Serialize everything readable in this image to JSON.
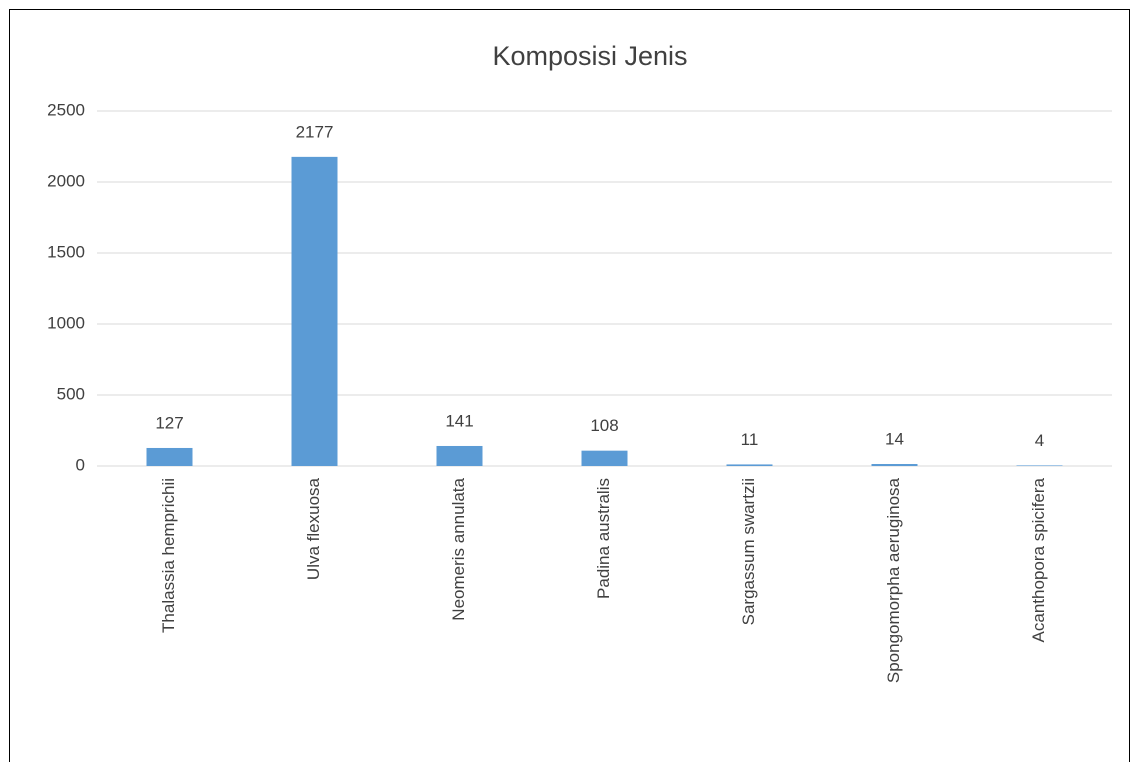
{
  "chart_data": {
    "type": "bar",
    "title": "Komposisi Jenis",
    "categories": [
      "Thalassia hemprichii",
      "Ulva flexuosa",
      "Neomeris annulata",
      "Padina australis",
      "Sargassum swartzii",
      "Spongomorpha aeruginosa",
      "Acanthopora spicifera"
    ],
    "values": [
      127,
      2177,
      141,
      108,
      11,
      14,
      4
    ],
    "color": "#5b9bd5",
    "ylim": [
      0,
      2500
    ],
    "yticks": [
      0,
      500,
      1000,
      1500,
      2000,
      2500
    ],
    "grid": true
  }
}
